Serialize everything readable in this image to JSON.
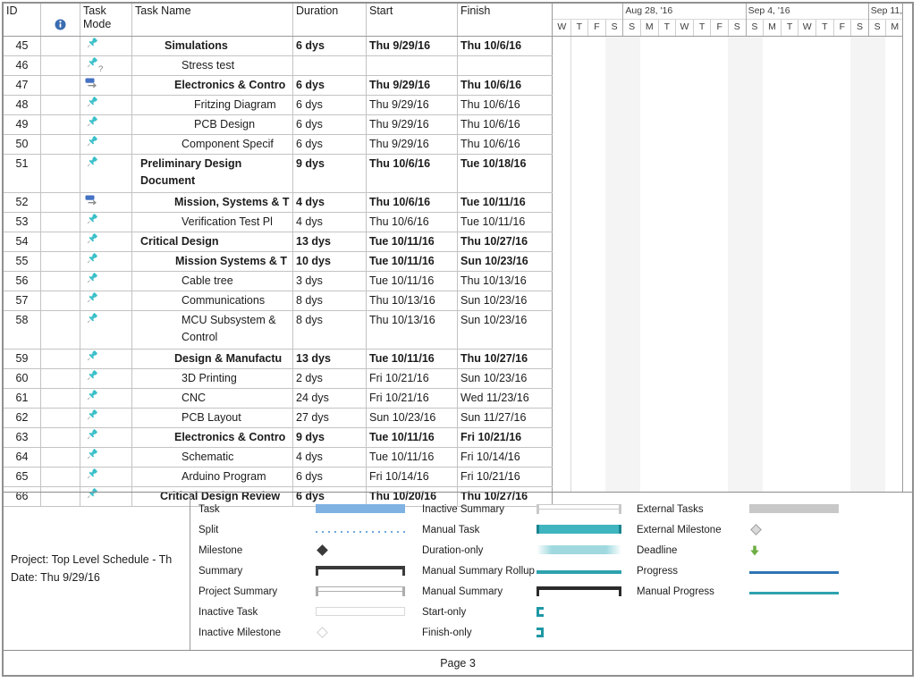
{
  "table": {
    "columns": [
      "ID",
      "",
      "Task Mode",
      "Task Name",
      "Duration",
      "Start",
      "Finish"
    ],
    "rows": [
      {
        "id": "45",
        "mode": "pin",
        "name": "Simulations",
        "indent": 36,
        "bold": true,
        "wrap": false,
        "duration": "6 dys",
        "start": "Thu 9/29/16",
        "finish": "Thu 10/6/16"
      },
      {
        "id": "46",
        "mode": "pin_question",
        "name": "Stress test",
        "indent": 55,
        "bold": false,
        "wrap": false,
        "duration": "",
        "start": "",
        "finish": ""
      },
      {
        "id": "47",
        "mode": "auto",
        "name": "Electronics & Contro",
        "indent": 47,
        "bold": true,
        "wrap": false,
        "duration": "6 dys",
        "start": "Thu 9/29/16",
        "finish": "Thu 10/6/16"
      },
      {
        "id": "48",
        "mode": "pin",
        "name": "Fritzing Diagram",
        "indent": 69,
        "bold": false,
        "wrap": false,
        "duration": "6 dys",
        "start": "Thu 9/29/16",
        "finish": "Thu 10/6/16"
      },
      {
        "id": "49",
        "mode": "pin",
        "name": "PCB Design",
        "indent": 69,
        "bold": false,
        "wrap": false,
        "duration": "6 dys",
        "start": "Thu 9/29/16",
        "finish": "Thu 10/6/16"
      },
      {
        "id": "50",
        "mode": "pin",
        "name": "Component Specif",
        "indent": 55,
        "bold": false,
        "wrap": false,
        "duration": "6 dys",
        "start": "Thu 9/29/16",
        "finish": "Thu 10/6/16"
      },
      {
        "id": "51",
        "mode": "pin",
        "name": "Preliminary Design Document",
        "indent": 9,
        "bold": true,
        "wrap": true,
        "duration": "9 dys",
        "start": "Thu 10/6/16",
        "finish": "Tue 10/18/16"
      },
      {
        "id": "52",
        "mode": "auto",
        "name": "Mission, Systems & T",
        "indent": 47,
        "bold": true,
        "wrap": false,
        "duration": "4 dys",
        "start": "Thu 10/6/16",
        "finish": "Tue 10/11/16"
      },
      {
        "id": "53",
        "mode": "pin",
        "name": "Verification Test Pl",
        "indent": 55,
        "bold": false,
        "wrap": false,
        "duration": "4 dys",
        "start": "Thu 10/6/16",
        "finish": "Tue 10/11/16"
      },
      {
        "id": "54",
        "mode": "pin",
        "name": "Critical Design",
        "indent": 9,
        "bold": true,
        "wrap": false,
        "duration": "13 dys",
        "start": "Tue 10/11/16",
        "finish": "Thu 10/27/16"
      },
      {
        "id": "55",
        "mode": "pin",
        "name": "Mission Systems & T",
        "indent": 48,
        "bold": true,
        "wrap": false,
        "duration": "10 dys",
        "start": "Tue 10/11/16",
        "finish": "Sun 10/23/16"
      },
      {
        "id": "56",
        "mode": "pin",
        "name": "Cable tree",
        "indent": 55,
        "bold": false,
        "wrap": false,
        "duration": "3 dys",
        "start": "Tue 10/11/16",
        "finish": "Thu 10/13/16"
      },
      {
        "id": "57",
        "mode": "pin",
        "name": "Communications",
        "indent": 55,
        "bold": false,
        "wrap": false,
        "duration": "8 dys",
        "start": "Thu 10/13/16",
        "finish": "Sun 10/23/16"
      },
      {
        "id": "58",
        "mode": "pin",
        "name": "MCU Subsystem & Control",
        "indent": 55,
        "bold": false,
        "wrap": true,
        "duration": "8 dys",
        "start": "Thu 10/13/16",
        "finish": "Sun 10/23/16"
      },
      {
        "id": "59",
        "mode": "pin",
        "name": "Design & Manufactu",
        "indent": 47,
        "bold": true,
        "wrap": false,
        "duration": "13 dys",
        "start": "Tue 10/11/16",
        "finish": "Thu 10/27/16"
      },
      {
        "id": "60",
        "mode": "pin",
        "name": "3D Printing",
        "indent": 55,
        "bold": false,
        "wrap": false,
        "duration": "2 dys",
        "start": "Fri 10/21/16",
        "finish": "Sun 10/23/16"
      },
      {
        "id": "61",
        "mode": "pin",
        "name": "CNC",
        "indent": 55,
        "bold": false,
        "wrap": false,
        "duration": "24 dys",
        "start": "Fri 10/21/16",
        "finish": "Wed 11/23/16"
      },
      {
        "id": "62",
        "mode": "pin",
        "name": "PCB Layout",
        "indent": 55,
        "bold": false,
        "wrap": false,
        "duration": "27 dys",
        "start": "Sun 10/23/16",
        "finish": "Sun 11/27/16"
      },
      {
        "id": "63",
        "mode": "pin",
        "name": "Electronics & Contro",
        "indent": 47,
        "bold": true,
        "wrap": false,
        "duration": "9 dys",
        "start": "Tue 10/11/16",
        "finish": "Fri 10/21/16"
      },
      {
        "id": "64",
        "mode": "pin",
        "name": "Schematic",
        "indent": 55,
        "bold": false,
        "wrap": false,
        "duration": "4 dys",
        "start": "Tue 10/11/16",
        "finish": "Fri 10/14/16"
      },
      {
        "id": "65",
        "mode": "pin",
        "name": "Arduino Program",
        "indent": 55,
        "bold": false,
        "wrap": false,
        "duration": "6 dys",
        "start": "Fri 10/14/16",
        "finish": "Fri 10/21/16"
      },
      {
        "id": "66",
        "mode": "pin",
        "name": "Critical Design Review",
        "indent": 31,
        "bold": true,
        "wrap": false,
        "duration": "6 dys",
        "start": "Thu 10/20/16",
        "finish": "Thu 10/27/16"
      }
    ]
  },
  "gantt": {
    "days": [
      "W",
      "T",
      "F",
      "S",
      "S",
      "M",
      "T",
      "W",
      "T",
      "F",
      "S",
      "S",
      "M",
      "T",
      "W",
      "T",
      "F",
      "S",
      "S",
      "M"
    ],
    "week_labels": [
      {
        "text": "Aug 28, '16",
        "day_index": 4
      },
      {
        "text": "Sep 4, '16",
        "day_index": 11
      },
      {
        "text": "Sep 11,",
        "day_index": 18
      }
    ],
    "weekend_day_indices": [
      3,
      4,
      10,
      11,
      17,
      18
    ]
  },
  "legend": {
    "columns": [
      [
        {
          "label": "Task",
          "swatch": "bar-task"
        },
        {
          "label": "Split",
          "swatch": "split"
        },
        {
          "label": "Milestone",
          "swatch": "milestone-dark"
        },
        {
          "label": "Summary",
          "swatch": "summary-dark"
        },
        {
          "label": "Project Summary",
          "swatch": "summary-light"
        },
        {
          "label": "Inactive Task",
          "swatch": "box-inactive"
        },
        {
          "label": "Inactive Milestone",
          "swatch": "milestone-outline"
        }
      ],
      [
        {
          "label": "Inactive Summary",
          "swatch": "summary-outline"
        },
        {
          "label": "Manual Task",
          "swatch": "bar-manual"
        },
        {
          "label": "Duration-only",
          "swatch": "bar-duration"
        },
        {
          "label": "Manual Summary Rollup",
          "swatch": "bar-rollup"
        },
        {
          "label": "Manual Summary",
          "swatch": "summary-black"
        },
        {
          "label": "Start-only",
          "swatch": "bracket-left"
        },
        {
          "label": "Finish-only",
          "swatch": "bracket-right"
        }
      ],
      [
        {
          "label": "External Tasks",
          "swatch": "bar-external"
        },
        {
          "label": "External Milestone",
          "swatch": "milestone-gray"
        },
        {
          "label": "Deadline",
          "swatch": "arrow-down"
        },
        {
          "label": "Progress",
          "swatch": "line-blue"
        },
        {
          "label": "Manual Progress",
          "swatch": "line-teal"
        }
      ]
    ]
  },
  "project_info": {
    "line1": "Project: Top Level Schedule - Th",
    "line2": "Date: Thu 9/29/16"
  },
  "footer": {
    "page_label": "Page 3"
  },
  "colors": {
    "pin_teal": "#3ABFC9",
    "pin_needle": "#8A9296",
    "auto_blue": "#4472C4",
    "auto_arrow": "#8A8A8A",
    "info_blue": "#3B6DB1",
    "task_blue": "#7FB2E3",
    "split_blue": "#6FA8DC",
    "dark_bar": "#3A3A3A",
    "black_bar": "#2B2B2B",
    "light_bar": "#ADADAD",
    "outline_bar": "#C9C9C9",
    "inactive_border": "#D8D8D8",
    "manual_teal": "#3FB5BF",
    "manual_teal_dark": "#1B8490",
    "duration_teal": "#9FD9DF",
    "rollup_teal": "#2EA2AF",
    "bracket_teal": "#1E98A4",
    "external_gray": "#C8C8C8",
    "milestone_gray_fill": "#D9D9D9",
    "milestone_gray_border": "#9F9F9F",
    "deadline_green": "#6FAE44",
    "progress_blue": "#2E75B6",
    "weekend_shade": "#F4F4F4",
    "grid_line": "#C3C3C3",
    "border_dark": "#909090",
    "text": "#1C1C1C"
  }
}
